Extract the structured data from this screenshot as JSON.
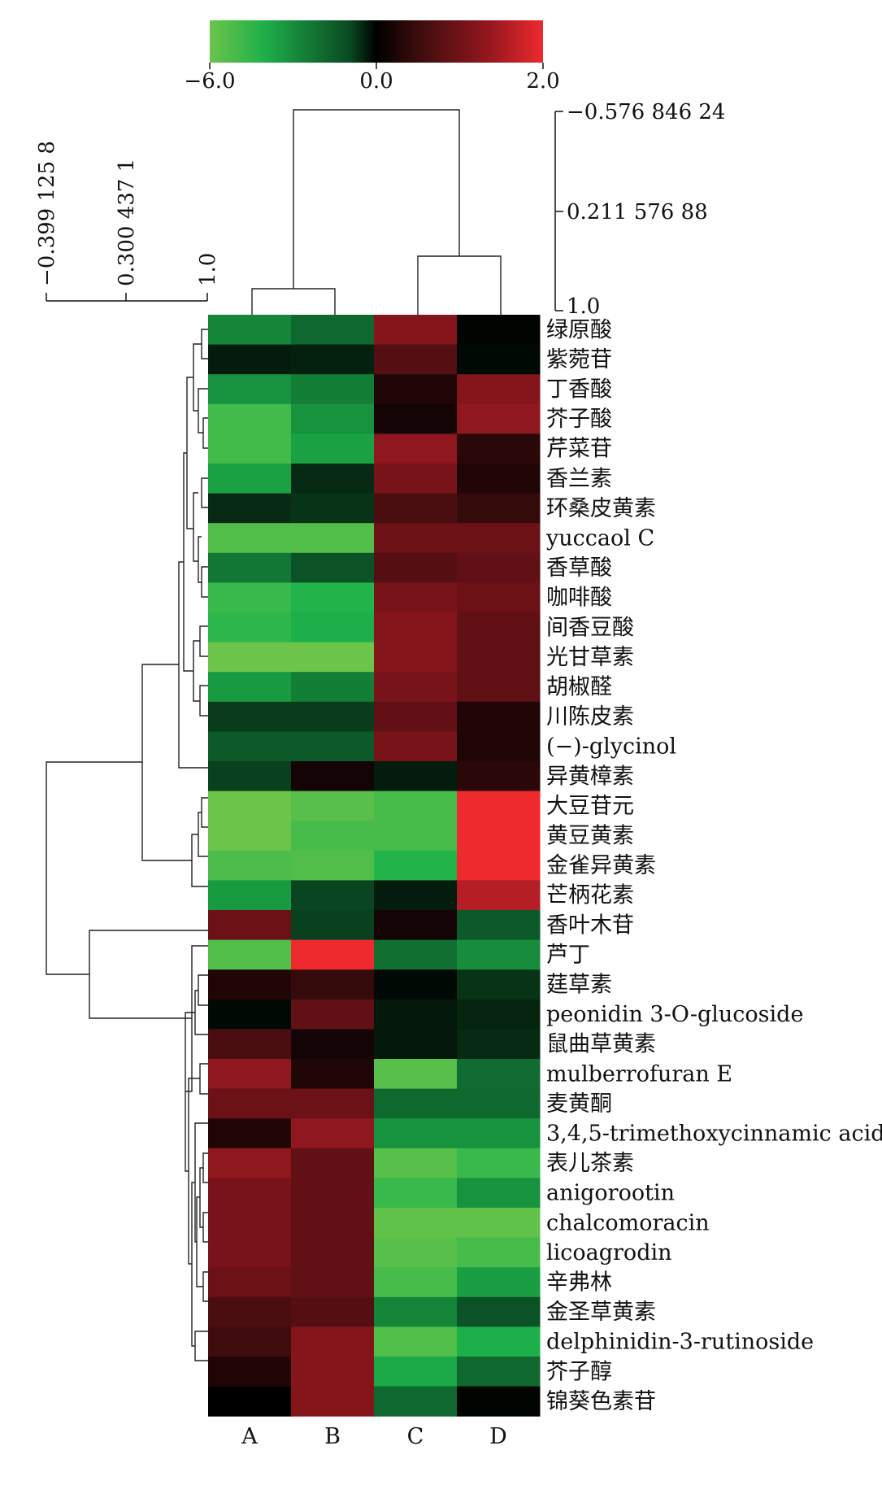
{
  "chart_data": {
    "type": "heatmap",
    "colorbar": {
      "min": -6.0,
      "mid": 0.0,
      "max": 2.0,
      "tick_labels": [
        "−6.0",
        "0.0",
        "2.0"
      ],
      "colors": {
        "low": "#6cc44a",
        "mid": "#000000",
        "high": "#ee2a2e"
      }
    },
    "columns": [
      "A",
      "B",
      "C",
      "D"
    ],
    "rows": [
      "绿原酸",
      "紫菀苷",
      "丁香酸",
      "芥子酸",
      "芹菜苷",
      "香兰素",
      "环桑皮黄素",
      "yuccaol C",
      "香草酸",
      "咖啡酸",
      "间香豆酸",
      "光甘草素",
      "胡椒醛",
      "川陈皮素",
      "(−)-glycinol",
      "异黄樟素",
      "大豆苷元",
      "黄豆黄素",
      "金雀异黄素",
      "芒柄花素",
      "香叶木苷",
      "芦丁",
      "莛草素",
      "peonidin 3-O-glucoside",
      "鼠曲草黄素",
      "mulberrofuran E",
      "麦黄酮",
      "3,4,5-trimethoxycinnamic acid",
      "表儿茶素",
      "anigorootin",
      "chalcomoracin",
      "licoagrodin",
      "辛弗林",
      "金圣草黄素",
      "delphinidin-3-rutinoside",
      "芥子醇",
      "锦葵色素苷"
    ],
    "values": [
      [
        -3.2,
        -2.4,
        1.2,
        -0.1
      ],
      [
        -0.6,
        -0.7,
        0.8,
        -0.2
      ],
      [
        -3.6,
        -3.0,
        0.3,
        1.2
      ],
      [
        -5.2,
        -3.6,
        0.2,
        1.3
      ],
      [
        -5.2,
        -4.0,
        1.3,
        0.4
      ],
      [
        -4.0,
        -0.9,
        1.1,
        0.3
      ],
      [
        -0.9,
        -1.1,
        0.7,
        0.5
      ],
      [
        -5.5,
        -5.5,
        1.0,
        1.0
      ],
      [
        -2.8,
        -1.8,
        0.8,
        0.9
      ],
      [
        -5.0,
        -4.6,
        1.1,
        1.0
      ],
      [
        -4.8,
        -4.4,
        1.2,
        0.9
      ],
      [
        -6.0,
        -6.0,
        1.2,
        0.9
      ],
      [
        -3.8,
        -3.0,
        1.1,
        0.9
      ],
      [
        -1.3,
        -1.3,
        0.9,
        0.3
      ],
      [
        -2.0,
        -2.0,
        1.1,
        0.3
      ],
      [
        -1.4,
        0.2,
        -0.6,
        0.4
      ],
      [
        -6.0,
        -5.6,
        -5.3,
        2.0
      ],
      [
        -6.0,
        -5.3,
        -5.3,
        2.0
      ],
      [
        -5.4,
        -5.5,
        -4.6,
        2.0
      ],
      [
        -3.8,
        -1.5,
        -0.6,
        1.6
      ],
      [
        1.0,
        -1.4,
        0.2,
        -2.0
      ],
      [
        -5.5,
        2.0,
        -2.6,
        -3.4
      ],
      [
        0.3,
        0.5,
        -0.2,
        -1.1
      ],
      [
        -0.2,
        0.9,
        -0.5,
        -0.8
      ],
      [
        0.7,
        0.2,
        -0.5,
        -0.9
      ],
      [
        1.3,
        0.3,
        -5.6,
        -2.5
      ],
      [
        1.0,
        1.0,
        -2.4,
        -2.4
      ],
      [
        0.3,
        1.3,
        -3.6,
        -3.6
      ],
      [
        1.3,
        0.9,
        -5.6,
        -5.0
      ],
      [
        1.1,
        0.9,
        -5.0,
        -3.6
      ],
      [
        1.1,
        0.9,
        -5.8,
        -5.8
      ],
      [
        1.1,
        0.9,
        -5.6,
        -5.3
      ],
      [
        1.0,
        0.9,
        -5.3,
        -3.9
      ],
      [
        0.7,
        0.8,
        -3.2,
        -1.8
      ],
      [
        0.6,
        1.2,
        -5.5,
        -4.4
      ],
      [
        0.3,
        1.2,
        -4.2,
        -2.4
      ],
      [
        0.0,
        1.2,
        -2.4,
        -0.1
      ]
    ],
    "row_dendrogram_scale": [
      "−0.399 125 8",
      "0.300 437 1",
      "1.0"
    ],
    "col_dendrogram_scale": [
      "−0.576 846 24",
      "0.211 576 88",
      "1.0"
    ]
  }
}
